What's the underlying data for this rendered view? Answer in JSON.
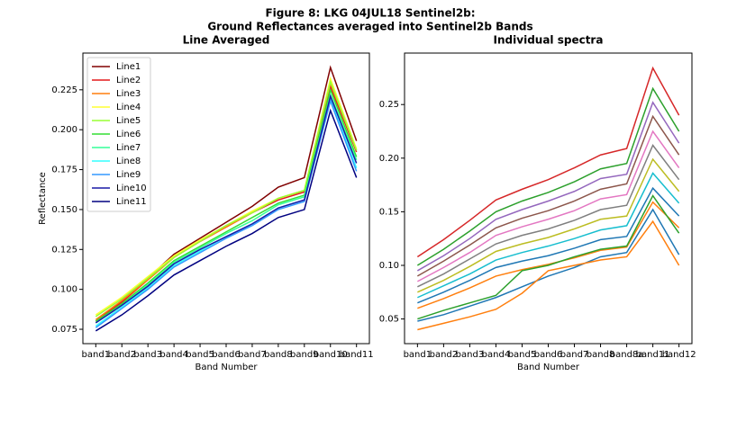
{
  "figure_title": [
    "Figure 8: LKG 04JUL18  Sentinel2b:",
    "Ground Reflectances averaged into Sentinel2b Bands"
  ],
  "chart_data": [
    {
      "type": "line",
      "title": "Line Averaged",
      "xlabel": "Band Number",
      "ylabel": "Reflectance",
      "categories": [
        "band1",
        "band2",
        "band3",
        "band4",
        "band5",
        "band6",
        "band7",
        "band8",
        "band9",
        "band10",
        "band11"
      ],
      "ylim": [
        0.066,
        0.248
      ],
      "yticks": [
        0.075,
        {
          "value": 0.1,
          "label": "0.100"
        },
        0.125,
        {
          "value": 0.15,
          "label": "0.150"
        },
        0.175,
        {
          "value": 0.2,
          "label": "0.200"
        },
        0.225
      ],
      "legend": "upper left",
      "series": [
        {
          "name": "Line1",
          "color": "#800000",
          "values": [
            0.08,
            0.093,
            0.107,
            0.122,
            0.132,
            0.142,
            0.152,
            0.164,
            0.17,
            0.239,
            0.193
          ]
        },
        {
          "name": "Line2",
          "color": "#e41a1c",
          "values": [
            0.08,
            0.092,
            0.106,
            0.12,
            0.13,
            0.139,
            0.148,
            0.156,
            0.161,
            0.227,
            0.186
          ]
        },
        {
          "name": "Line3",
          "color": "#ff7f0e",
          "values": [
            0.081,
            0.093,
            0.106,
            0.12,
            0.13,
            0.139,
            0.148,
            0.157,
            0.162,
            0.229,
            0.187
          ]
        },
        {
          "name": "Line4",
          "color": "#ffff33",
          "values": [
            0.084,
            0.095,
            0.108,
            0.121,
            0.131,
            0.14,
            0.149,
            0.157,
            0.162,
            0.232,
            0.188
          ]
        },
        {
          "name": "Line5",
          "color": "#99ff33",
          "values": [
            0.083,
            0.094,
            0.107,
            0.12,
            0.13,
            0.14,
            0.148,
            0.157,
            0.162,
            0.23,
            0.187
          ]
        },
        {
          "name": "Line6",
          "color": "#33dd33",
          "values": [
            0.08,
            0.091,
            0.104,
            0.118,
            0.127,
            0.136,
            0.145,
            0.154,
            0.159,
            0.225,
            0.183
          ]
        },
        {
          "name": "Line7",
          "color": "#33ff99",
          "values": [
            0.079,
            0.09,
            0.103,
            0.117,
            0.126,
            0.135,
            0.143,
            0.153,
            0.158,
            0.222,
            0.181
          ]
        },
        {
          "name": "Line8",
          "color": "#33ffff",
          "values": [
            0.077,
            0.089,
            0.101,
            0.115,
            0.124,
            0.133,
            0.141,
            0.151,
            0.156,
            0.219,
            0.176
          ]
        },
        {
          "name": "Line9",
          "color": "#3399ff",
          "values": [
            0.076,
            0.088,
            0.1,
            0.114,
            0.123,
            0.132,
            0.14,
            0.15,
            0.155,
            0.218,
            0.174
          ]
        },
        {
          "name": "Line10",
          "color": "#1a1aa6",
          "values": [
            0.079,
            0.09,
            0.102,
            0.116,
            0.125,
            0.133,
            0.141,
            0.151,
            0.156,
            0.221,
            0.179
          ]
        },
        {
          "name": "Line11",
          "color": "#000080",
          "values": [
            0.074,
            0.084,
            0.096,
            0.109,
            0.118,
            0.127,
            0.135,
            0.145,
            0.15,
            0.212,
            0.17
          ]
        }
      ]
    },
    {
      "type": "line",
      "title": "Individual spectra",
      "xlabel": "Band Number",
      "categories": [
        "band1",
        "band2",
        "band3",
        "band4",
        "band5",
        "band6",
        "band7",
        "band8",
        "band8a",
        "band11",
        "band12"
      ],
      "ylim": [
        0.027,
        0.298
      ],
      "yticks": [
        0.05,
        {
          "value": 0.1,
          "label": "0.10"
        },
        0.15,
        {
          "value": 0.2,
          "label": "0.20"
        },
        0.25
      ],
      "series": [
        {
          "color": "#d62728",
          "values": [
            0.108,
            0.124,
            0.142,
            0.161,
            0.171,
            0.18,
            0.191,
            0.203,
            0.209,
            0.284,
            0.24
          ]
        },
        {
          "color": "#2ca02c",
          "values": [
            0.1,
            0.115,
            0.132,
            0.15,
            0.16,
            0.168,
            0.178,
            0.19,
            0.195,
            0.265,
            0.225
          ]
        },
        {
          "color": "#9467bd",
          "values": [
            0.095,
            0.109,
            0.125,
            0.143,
            0.152,
            0.16,
            0.169,
            0.181,
            0.185,
            0.252,
            0.214
          ]
        },
        {
          "color": "#8c564b",
          "values": [
            0.09,
            0.104,
            0.119,
            0.135,
            0.144,
            0.151,
            0.16,
            0.171,
            0.176,
            0.239,
            0.203
          ]
        },
        {
          "color": "#e377c2",
          "values": [
            0.085,
            0.098,
            0.112,
            0.128,
            0.136,
            0.143,
            0.151,
            0.162,
            0.166,
            0.225,
            0.191
          ]
        },
        {
          "color": "#7f7f7f",
          "values": [
            0.08,
            0.092,
            0.106,
            0.12,
            0.128,
            0.134,
            0.142,
            0.152,
            0.156,
            0.212,
            0.18
          ]
        },
        {
          "color": "#bcbd22",
          "values": [
            0.075,
            0.086,
            0.099,
            0.113,
            0.12,
            0.126,
            0.134,
            0.143,
            0.146,
            0.199,
            0.169
          ]
        },
        {
          "color": "#17becf",
          "values": [
            0.07,
            0.081,
            0.092,
            0.105,
            0.112,
            0.118,
            0.125,
            0.133,
            0.137,
            0.186,
            0.158
          ]
        },
        {
          "color": "#1f77b4",
          "values": [
            0.065,
            0.075,
            0.086,
            0.098,
            0.104,
            0.109,
            0.116,
            0.124,
            0.127,
            0.172,
            0.146
          ]
        },
        {
          "color": "#ff7f0e",
          "values": [
            0.06,
            0.069,
            0.079,
            0.09,
            0.096,
            0.101,
            0.107,
            0.114,
            0.117,
            0.159,
            0.135
          ]
        },
        {
          "color": "#2ca02c",
          "values": [
            0.05,
            0.058,
            0.065,
            0.072,
            0.095,
            0.1,
            0.108,
            0.115,
            0.118,
            0.165,
            0.13
          ]
        },
        {
          "color": "#1f77b4",
          "values": [
            0.048,
            0.054,
            0.062,
            0.07,
            0.08,
            0.09,
            0.098,
            0.108,
            0.112,
            0.152,
            0.11
          ]
        },
        {
          "color": "#ff7f0e",
          "values": [
            0.04,
            0.046,
            0.052,
            0.059,
            0.074,
            0.095,
            0.1,
            0.105,
            0.108,
            0.141,
            0.1
          ]
        }
      ]
    }
  ]
}
